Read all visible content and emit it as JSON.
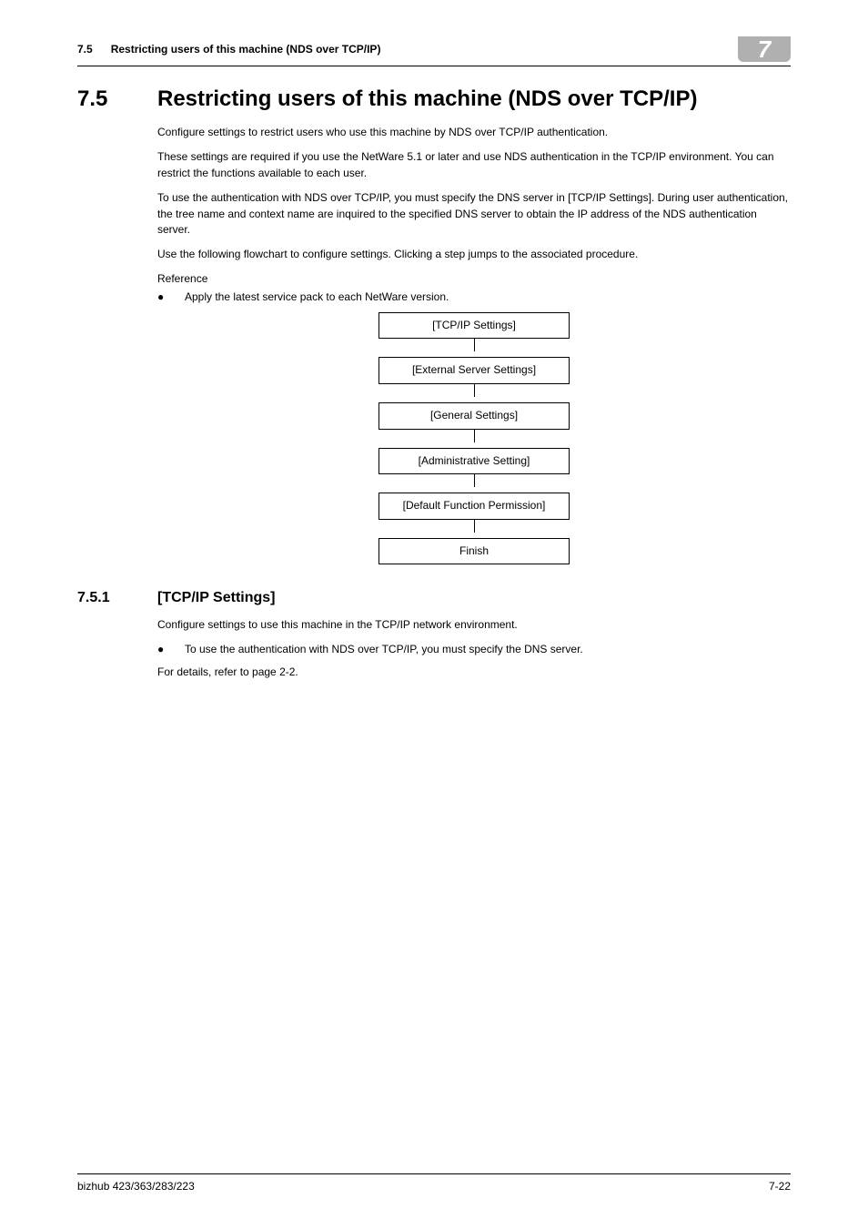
{
  "header": {
    "section_num": "7.5",
    "section_title": "Restricting users of this machine (NDS over TCP/IP)",
    "chapter_badge": "7"
  },
  "h1": {
    "num": "7.5",
    "title": "Restricting users of this machine (NDS over TCP/IP)"
  },
  "paras": {
    "p1": "Configure settings to restrict users who use this machine by NDS over TCP/IP authentication.",
    "p2": "These settings are required if you use the NetWare 5.1 or later and use NDS authentication in the TCP/IP environment. You can restrict the functions available to each user.",
    "p3": "To use the authentication with NDS over TCP/IP, you must specify the DNS server in [TCP/IP Settings]. During user authentication, the tree name and context name are inquired to the specified DNS server to obtain the IP address of the NDS authentication server.",
    "p4": "Use the following flowchart to configure settings. Clicking a step jumps to the associated procedure.",
    "ref": "Reference",
    "bullet1": "Apply the latest service pack to each NetWare version."
  },
  "flow": {
    "b1": "[TCP/IP Settings]",
    "b2": "[External Server Settings]",
    "b3": "[General Settings]",
    "b4": "[Administrative Setting]",
    "b5": "[Default Function Permission]",
    "b6": "Finish"
  },
  "h2": {
    "num": "7.5.1",
    "title": "[TCP/IP Settings]"
  },
  "sub_paras": {
    "s1": "Configure settings to use this machine in the TCP/IP network environment.",
    "s_bullet": "To use the authentication with NDS over TCP/IP, you must specify the DNS server.",
    "s2": "For details, refer to page 2-2."
  },
  "footer": {
    "left": "bizhub 423/363/283/223",
    "right": "7-22"
  },
  "colors": {
    "badge_bg": "#b0b0b0",
    "badge_fg": "#ffffff",
    "text": "#000000",
    "rule": "#000000",
    "box_border": "#000000"
  }
}
